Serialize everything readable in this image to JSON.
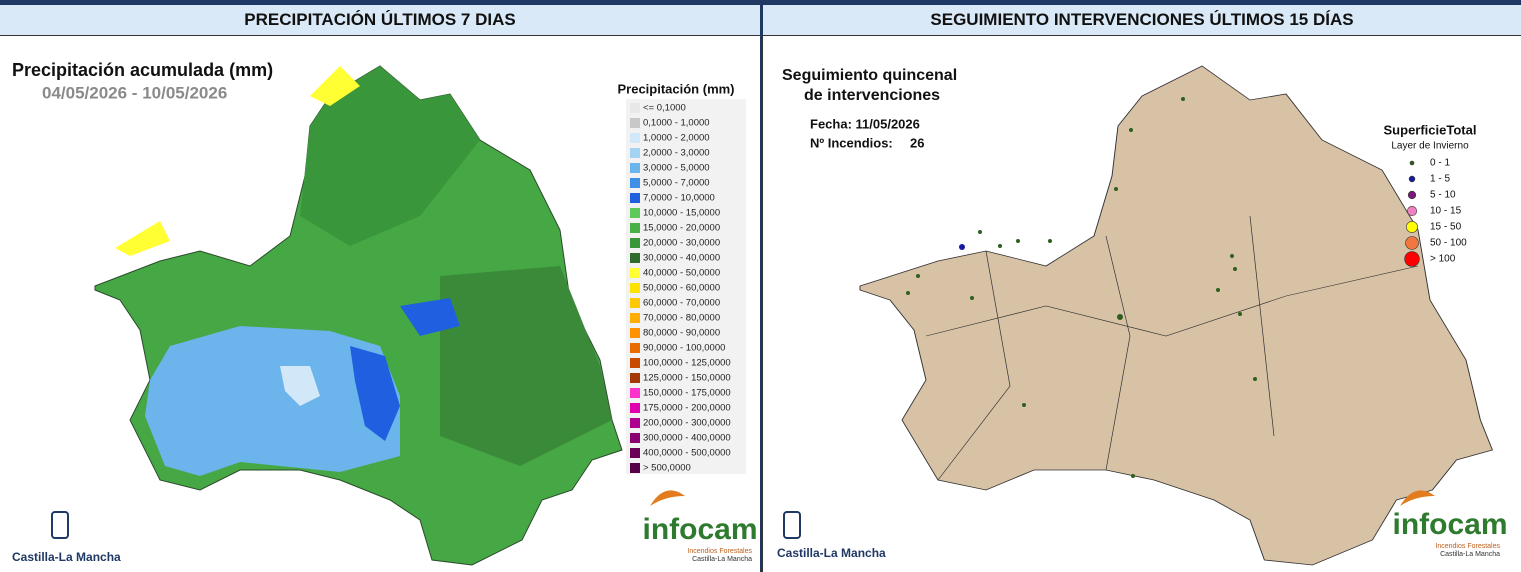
{
  "headers": [
    "PRECIPITACIÓN ÚLTIMOS 7 DIAS",
    "SEGUIMIENTO INTERVENCIONES ÚLTIMOS 15 DÍAS"
  ],
  "precipitation_map": {
    "title": "Precipitación acumulada (mm)",
    "date_range": "04/05/2026 - 10/05/2026",
    "legend_title": "Precipitación (mm)",
    "legend": [
      {
        "label": "<= 0,1000",
        "color": "#e8e8e8"
      },
      {
        "label": "0,1000 - 1,0000",
        "color": "#c8c8c8"
      },
      {
        "label": "1,0000 - 2,0000",
        "color": "#d2e7f8"
      },
      {
        "label": "2,0000 - 3,0000",
        "color": "#a3d2f3"
      },
      {
        "label": "3,0000 - 5,0000",
        "color": "#6cb4ec"
      },
      {
        "label": "5,0000 - 7,0000",
        "color": "#3f8fe6"
      },
      {
        "label": "7,0000 - 10,0000",
        "color": "#1f5fe0"
      },
      {
        "label": "10,0000 - 15,0000",
        "color": "#5cc95a"
      },
      {
        "label": "15,0000 - 20,0000",
        "color": "#47b146"
      },
      {
        "label": "20,0000 - 30,0000",
        "color": "#3a963a"
      },
      {
        "label": "30,0000 - 40,0000",
        "color": "#2e6b2e"
      },
      {
        "label": "40,0000 - 50,0000",
        "color": "#ffff33"
      },
      {
        "label": "50,0000 - 60,0000",
        "color": "#ffe200"
      },
      {
        "label": "60,0000 - 70,0000",
        "color": "#ffc800"
      },
      {
        "label": "70,0000 - 80,0000",
        "color": "#ffad00"
      },
      {
        "label": "80,0000 - 90,0000",
        "color": "#ff9200"
      },
      {
        "label": "90,0000 - 100,0000",
        "color": "#e96b00"
      },
      {
        "label": "100,0000 - 125,0000",
        "color": "#c84b00"
      },
      {
        "label": "125,0000 - 150,0000",
        "color": "#a53700"
      },
      {
        "label": "150,0000 - 175,0000",
        "color": "#ff33cc"
      },
      {
        "label": "175,0000 - 200,0000",
        "color": "#e000b0"
      },
      {
        "label": "200,0000 - 300,0000",
        "color": "#b0008f"
      },
      {
        "label": "300,0000 - 400,0000",
        "color": "#8a0070"
      },
      {
        "label": "400,0000 - 500,0000",
        "color": "#6a0058"
      },
      {
        "label": "> 500,0000",
        "color": "#560048"
      }
    ]
  },
  "interventions_map": {
    "title_lines": [
      "Seguimiento quincenal",
      "de intervenciones"
    ],
    "date": "Fecha: 11/05/2026",
    "fires_label": "Nº Incendios:",
    "fires_count": 26,
    "legend_title": "SuperficieTotal",
    "legend_subtitle": "Layer de Invierno",
    "legend": [
      {
        "label": "0 - 1",
        "color": "#2e5e1e"
      },
      {
        "label": "1 - 5",
        "color": "#1a1aa0"
      },
      {
        "label": "5 - 10",
        "color": "#7a1a7a"
      },
      {
        "label": "10 - 15",
        "color": "#f080c0"
      },
      {
        "label": "15 - 50",
        "color": "#ffff00"
      },
      {
        "label": "50 - 100",
        "color": "#f07840"
      },
      {
        "label": "> 100",
        "color": "#ff0000"
      }
    ]
  },
  "branding": {
    "region": "Castilla-La Mancha",
    "logo": "infocam",
    "logo_caption_lines": [
      "Incendios Forestales",
      "Castilla-La Mancha"
    ]
  }
}
